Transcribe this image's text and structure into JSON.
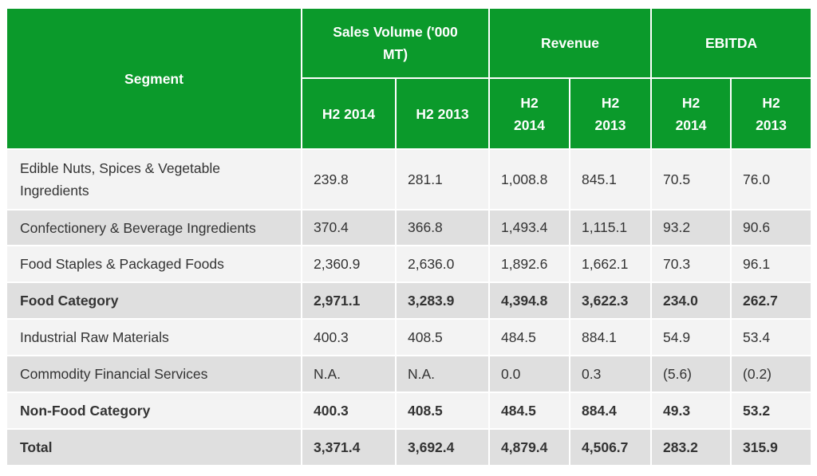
{
  "header": {
    "segment": "Segment",
    "groups": [
      "Sales Volume ('000 MT)",
      "Revenue",
      "EBITDA"
    ],
    "periods": [
      "H2 2014",
      "H2 2013",
      "H2 2014",
      "H2 2013",
      "H2 2014",
      "H2 2013"
    ]
  },
  "rows": [
    {
      "segment": "Edible Nuts, Spices & Vegetable Ingredients",
      "values": [
        "239.8",
        "281.1",
        "1,008.8",
        "845.1",
        "70.5",
        "76.0"
      ]
    },
    {
      "segment": "Confectionery & Beverage Ingredients",
      "values": [
        "370.4",
        "366.8",
        "1,493.4",
        "1,115.1",
        "93.2",
        "90.6"
      ]
    },
    {
      "segment": "Food Staples & Packaged Foods",
      "values": [
        "2,360.9",
        "2,636.0",
        "1,892.6",
        "1,662.1",
        "70.3",
        "96.1"
      ]
    },
    {
      "segment": "Food Category",
      "values": [
        "2,971.1",
        "3,283.9",
        "4,394.8",
        "3,622.3",
        "234.0",
        "262.7"
      ]
    },
    {
      "segment": "Industrial Raw Materials",
      "values": [
        "400.3",
        "408.5",
        "484.5",
        "884.1",
        "54.9",
        "53.4"
      ]
    },
    {
      "segment": "Commodity Financial Services",
      "values": [
        "N.A.",
        "N.A.",
        "0.0",
        "0.3",
        "(5.6)",
        "(0.2)"
      ]
    },
    {
      "segment": "Non-Food Category",
      "values": [
        "400.3",
        "408.5",
        "484.5",
        "884.4",
        "49.3",
        "53.2"
      ]
    },
    {
      "segment": "Total",
      "values": [
        "3,371.4",
        "3,692.4",
        "4,879.4",
        "4,506.7",
        "283.2",
        "315.9"
      ]
    }
  ],
  "colors": {
    "header_green": "#0b9a2b",
    "row_light": "#f3f3f3",
    "row_dark": "#dfdfdf"
  }
}
